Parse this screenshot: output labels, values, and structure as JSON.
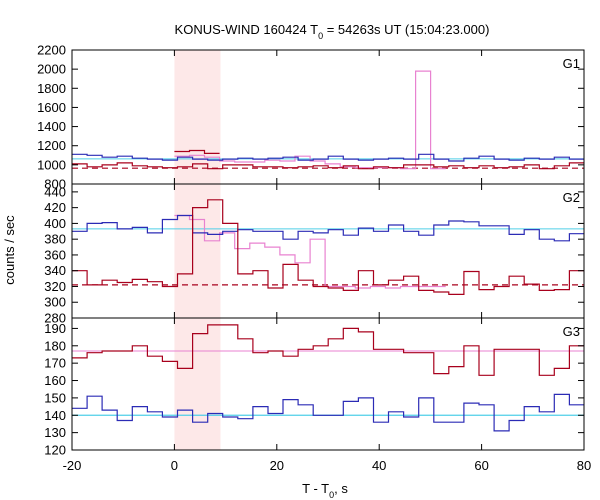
{
  "chart_data": {
    "type": "line",
    "title": "KONUS-WIND 160424 T",
    "title_sub": "0",
    "title_rest": " = 54263s UT (15:04:23.000)",
    "xlabel": "T - T",
    "xlabel_sub": "0",
    "xlabel_rest": ", s",
    "ylabel": "counts / sec",
    "xlim": [
      -20,
      80
    ],
    "x_ticks": [
      "-20",
      "0",
      "20",
      "40",
      "60",
      "80"
    ],
    "x_tick_values": [
      -20,
      0,
      20,
      40,
      60,
      80
    ],
    "highlight_interval": [
      0,
      9
    ],
    "colors": {
      "dark_red": "#a8001c",
      "blue": "#2b2bb5",
      "pink": "#e882d0",
      "light_blue": "#4fcfe8",
      "highlight": "#fde8e8"
    },
    "panels": [
      {
        "label": "G1",
        "ylim": [
          800,
          2200
        ],
        "y_ticks": [
          800,
          1000,
          1200,
          1400,
          1600,
          1800,
          2000,
          2200
        ],
        "y_tick_labels": [
          "800",
          "1000",
          "1200",
          "1400",
          "1600",
          "1800",
          "2000",
          "2200"
        ],
        "background_level": 1062,
        "background2_level": 965,
        "blue_series": {
          "x_start": -20,
          "bin": 2.944,
          "values": [
            1110,
            1100,
            1080,
            1090,
            1070,
            1060,
            1050,
            1080,
            1060,
            1050,
            1060,
            1070,
            1060,
            1070,
            1080,
            1050,
            1060,
            1090,
            1060,
            1050,
            1060,
            1070,
            1060,
            1110,
            1060,
            1040,
            1070,
            1090,
            1060,
            1050,
            1070,
            1060,
            1080,
            1060,
            1060
          ]
        },
        "red_series": {
          "x_start": -20,
          "bin": 2.944,
          "values": [
            1010,
            980,
            1000,
            1020,
            990,
            980,
            970,
            980,
            1010,
            960,
            1000,
            1000,
            980,
            980,
            970,
            980,
            990,
            970,
            990,
            960,
            980,
            970,
            1000,
            1000,
            980,
            990,
            970,
            990,
            970,
            980,
            1000,
            960,
            990,
            1020,
            980
          ]
        },
        "pink_series": {
          "x_start": 0,
          "bin": 2.944,
          "values": [
            1090,
            1100,
            1080,
            1040,
            1030,
            1030,
            1050,
            1040,
            1090,
            1040,
            1010,
            980,
            970,
            970,
            970,
            960,
            1980,
            960
          ]
        },
        "red_flare": {
          "x_start": 0,
          "bin": 2.944,
          "values": [
            1140,
            1150,
            1120
          ]
        }
      },
      {
        "label": "G2",
        "ylim": [
          280,
          450
        ],
        "y_ticks": [
          280,
          300,
          320,
          340,
          360,
          380,
          400,
          420,
          440
        ],
        "y_tick_labels": [
          "280",
          "300",
          "320",
          "340",
          "360",
          "380",
          "400",
          "420",
          "440"
        ],
        "background_level": 393,
        "background2_level": 322,
        "blue_series": {
          "x_start": -20,
          "bin": 2.944,
          "values": [
            390,
            400,
            401,
            393,
            395,
            388,
            405,
            410,
            388,
            386,
            390,
            392,
            390,
            390,
            380,
            390,
            388,
            392,
            385,
            394,
            390,
            398,
            390,
            385,
            398,
            403,
            402,
            397,
            397,
            386,
            392,
            380,
            378,
            387,
            398,
            395
          ]
        },
        "red_series": {
          "x_start": -20,
          "bin": 2.944,
          "values": [
            340,
            322,
            328,
            325,
            329,
            326,
            320,
            336,
            420,
            430,
            400,
            336,
            340,
            318,
            348,
            328,
            320,
            318,
            315,
            340,
            322,
            328,
            333,
            315,
            313,
            310,
            339,
            316,
            320,
            333,
            323,
            315,
            316,
            340,
            325,
            318
          ]
        },
        "pink_series": {
          "x_start": 0,
          "bin": 2.944,
          "values": [
            410,
            405,
            378,
            388,
            368,
            375,
            370,
            360,
            350,
            380,
            320,
            320,
            318,
            320,
            318,
            320,
            320,
            320
          ]
        }
      },
      {
        "label": "G3",
        "ylim": [
          120,
          196
        ],
        "y_ticks": [
          120,
          130,
          140,
          150,
          160,
          170,
          180,
          190
        ],
        "y_tick_labels": [
          "120",
          "130",
          "140",
          "150",
          "160",
          "170",
          "180",
          "190"
        ],
        "background_level": 177,
        "background2_level": 140,
        "red_series": {
          "x_start": -20,
          "bin": 2.944,
          "values": [
            173,
            176,
            177,
            177,
            180,
            174,
            171,
            167,
            187,
            192,
            192,
            184,
            176,
            177,
            174,
            178,
            180,
            184,
            190,
            188,
            178,
            178,
            176,
            176,
            164,
            168,
            180,
            163,
            178,
            178,
            178,
            163,
            167,
            180,
            174,
            172
          ]
        },
        "blue_series": {
          "x_start": -20,
          "bin": 2.944,
          "values": [
            144,
            151,
            143,
            137,
            145,
            142,
            139,
            143,
            136,
            141,
            139,
            138,
            145,
            141,
            149,
            146,
            140,
            140,
            148,
            150,
            136,
            142,
            139,
            150,
            136,
            136,
            147,
            146,
            131,
            137,
            145,
            142,
            152,
            146,
            161,
            145,
            141
          ]
        }
      }
    ]
  }
}
